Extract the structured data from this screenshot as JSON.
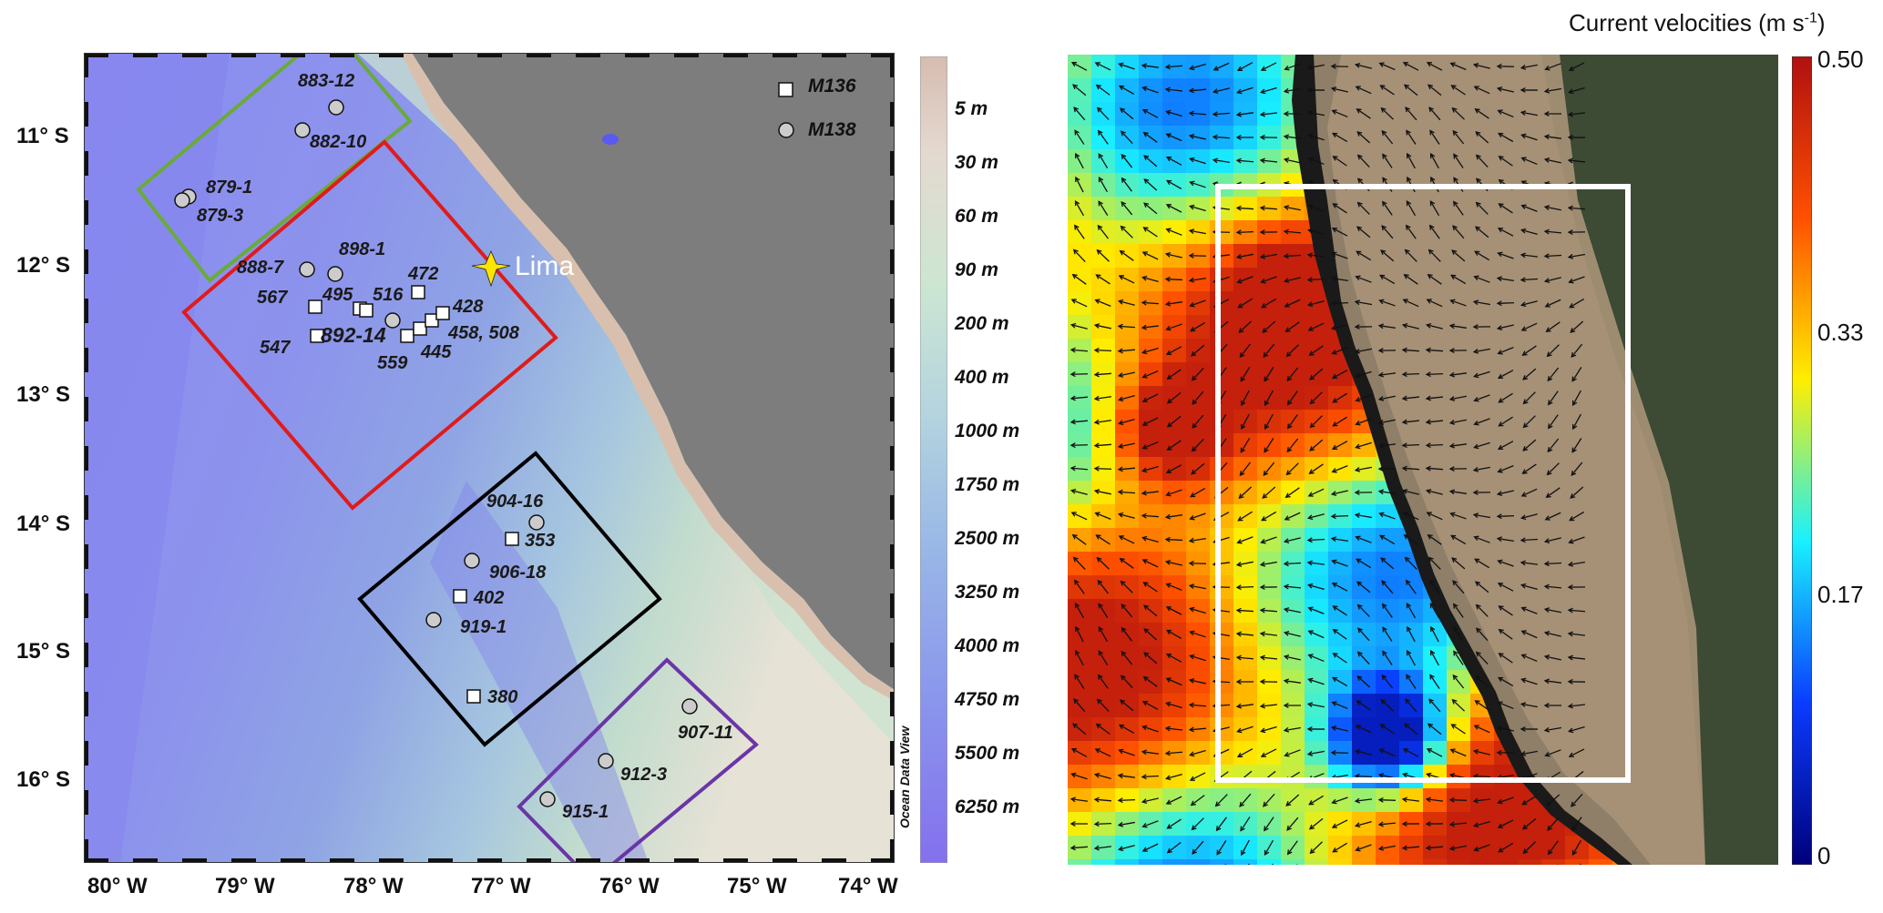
{
  "left_map": {
    "lat_labels": [
      "11° S",
      "12° S",
      "13° S",
      "14° S",
      "15° S",
      "16° S"
    ],
    "lon_labels": [
      "80° W",
      "79° W",
      "78° W",
      "77° W",
      "76° W",
      "75° W",
      "74° W"
    ],
    "legend": [
      {
        "name": "M136",
        "symbol": "square"
      },
      {
        "name": "M138",
        "symbol": "circle"
      }
    ],
    "city": "Lima",
    "depth_scale": [
      "5 m",
      "30 m",
      "60 m",
      "90 m",
      "200 m",
      "400 m",
      "1000 m",
      "1750 m",
      "2500 m",
      "3250 m",
      "4000 m",
      "4750 m",
      "5500 m",
      "6250 m"
    ],
    "credit": "Ocean Data View",
    "station_labels": [
      "883-12",
      "882-10",
      "879-1",
      "879-3",
      "888-7",
      "898-1",
      "472",
      "567",
      "495",
      "516",
      "428",
      "547",
      "892-14",
      "458, 508",
      "559",
      "445",
      "904-16",
      "353",
      "906-18",
      "402",
      "919-1",
      "380",
      "907-11",
      "912-3",
      "915-1"
    ],
    "box_colors": {
      "green": "#6aaa3a",
      "red": "#e01b1b",
      "black": "#000000",
      "purple": "#6a35a8"
    },
    "land_color": "#7d7d7d"
  },
  "right_map": {
    "title": "Current velocities (m s",
    "title_sup": "-1",
    "title_close": ")",
    "colorbar_ticks": [
      "0.50",
      "0.33",
      "0.17",
      "0"
    ],
    "colorbar_colors": [
      "#b01010",
      "#ff5000",
      "#ffee00",
      "#19f0ff",
      "#0a3cff",
      "#00007a"
    ]
  }
}
